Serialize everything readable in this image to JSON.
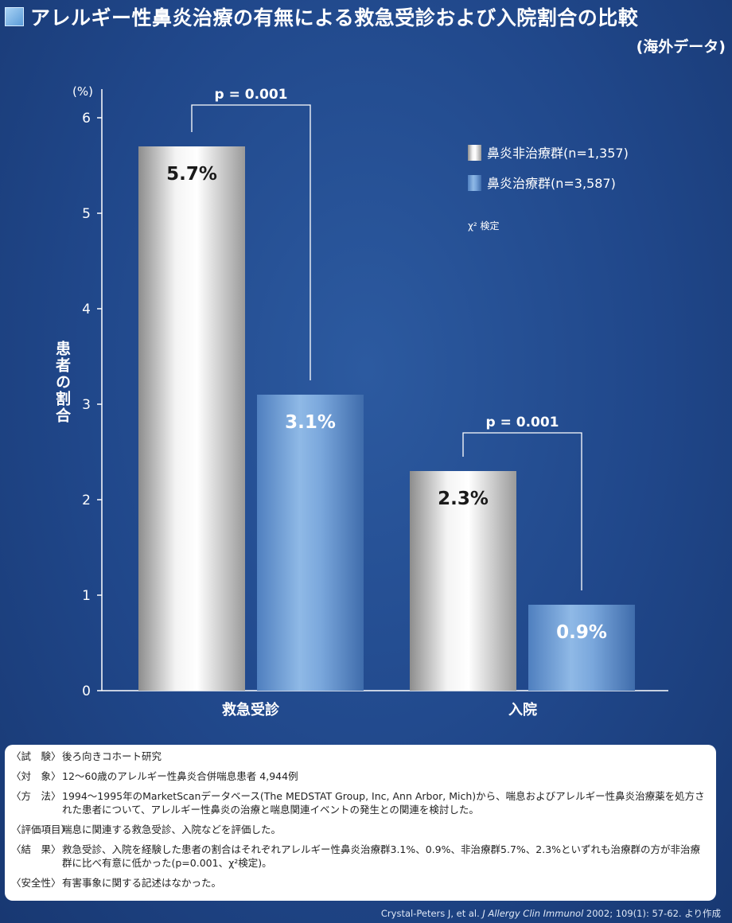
{
  "header": {
    "title": "アレルギー性鼻炎治療の有無による救急受診および入院割合の比較",
    "subtitle": "(海外データ)"
  },
  "chart_data": {
    "type": "bar",
    "categories": [
      "救急受診",
      "入院"
    ],
    "series": [
      {
        "name": "鼻炎非治療群(n=1,357)",
        "values": [
          5.7,
          2.3
        ],
        "labels": [
          "5.7%",
          "2.3%"
        ],
        "color": "#c9c9c9"
      },
      {
        "name": "鼻炎治療群(n=3,587)",
        "values": [
          3.1,
          0.9
        ],
        "labels": [
          "3.1%",
          "0.9%"
        ],
        "color": "#5d8fd0"
      }
    ],
    "yticks": [
      "0",
      "1",
      "2",
      "3",
      "4",
      "5",
      "6"
    ],
    "ylim": [
      0,
      6.3
    ],
    "yunit": "(%)",
    "ylabel": "患者の割合",
    "pvalues": [
      "p = 0.001",
      "p = 0.001"
    ],
    "test_note": "χ² 検定",
    "grid": false,
    "legend_position": "top-right"
  },
  "info": {
    "rows": [
      {
        "label": "〈試　験〉",
        "text": "後ろ向きコホート研究"
      },
      {
        "label": "〈対　象〉",
        "text": "12～60歳のアレルギー性鼻炎合併喘息患者 4,944例"
      },
      {
        "label": "〈方　法〉",
        "text": "1994～1995年のMarketScanデータベース(The MEDSTAT Group, Inc, Ann Arbor, Mich)から、喘息およびアレルギー性鼻炎治療薬を処方された患者について、アレルギー性鼻炎の治療と喘息関連イベントの発生との関連を検討した。"
      },
      {
        "label": "〈評価項目〉",
        "text": "喘息に関連する救急受診、入院などを評価した。"
      },
      {
        "label": "〈結　果〉",
        "text": "救急受診、入院を経験した患者の割合はそれぞれアレルギー性鼻炎治療群3.1%、0.9%、非治療群5.7%、2.3%といずれも治療群の方が非治療群に比べ有意に低かった(p=0.001、χ²検定)。"
      },
      {
        "label": "〈安全性〉",
        "text": "有害事象に関する記述はなかった。"
      }
    ]
  },
  "citation": {
    "authors": "Crystal-Peters J, et al.",
    "journal": "J Allergy Clin Immunol",
    "details": "2002; 109(1): 57-62. より作成"
  }
}
